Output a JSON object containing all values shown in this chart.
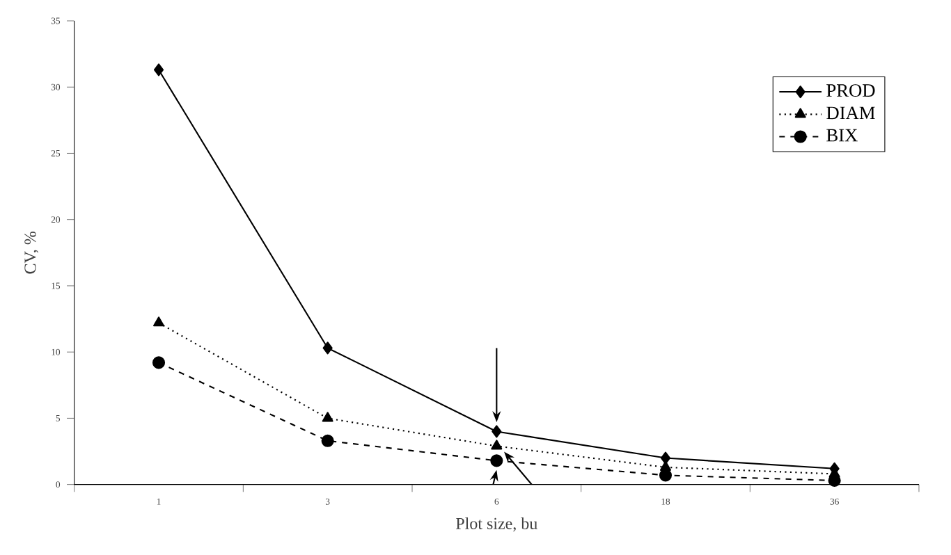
{
  "chart_data": {
    "type": "line",
    "xlabel": "Plot size, bu",
    "ylabel": "CV, %",
    "categories": [
      "1",
      "3",
      "6",
      "18",
      "36"
    ],
    "series": [
      {
        "name": "PROD",
        "color": "#000000",
        "marker": "diamond",
        "line_style": "solid",
        "values": [
          31.3,
          10.3,
          4.0,
          2.0,
          1.2
        ]
      },
      {
        "name": "DIAM",
        "color": "#000000",
        "marker": "triangle",
        "line_style": "dotted",
        "values": [
          12.2,
          5.0,
          2.9,
          1.3,
          0.8
        ]
      },
      {
        "name": "BIX",
        "color": "#000000",
        "marker": "circle",
        "line_style": "dashed",
        "values": [
          9.2,
          3.3,
          1.8,
          0.7,
          0.3
        ]
      }
    ],
    "ylim": [
      0,
      35
    ],
    "yticks": [
      0,
      5,
      10,
      15,
      20,
      25,
      30,
      35
    ],
    "grid": false,
    "legend": "top right"
  }
}
